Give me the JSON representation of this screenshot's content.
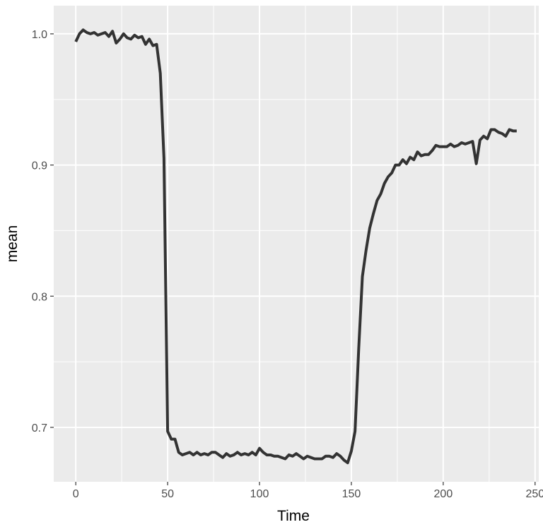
{
  "chart_data": {
    "type": "line",
    "xlabel": "Time",
    "ylabel": "mean",
    "xlim": [
      -12,
      252
    ],
    "ylim": [
      0.6585,
      1.0215
    ],
    "x_ticks": [
      0,
      50,
      100,
      150,
      200,
      250
    ],
    "x_tick_labels": [
      "0",
      "50",
      "100",
      "150",
      "200",
      "250"
    ],
    "y_ticks": [
      0.7,
      0.8,
      0.9,
      1.0
    ],
    "y_tick_labels": [
      "0.7",
      "0.8",
      "0.9",
      "1.0"
    ],
    "grid": true,
    "colors": {
      "panel": "#ebebeb",
      "grid": "#ffffff",
      "line": "#333333"
    },
    "series": [
      {
        "x": [
          0,
          2,
          4,
          6,
          8,
          10,
          12,
          14,
          16,
          18,
          20,
          22,
          24,
          26,
          28,
          30,
          32,
          34,
          36,
          38,
          40,
          42,
          44,
          46,
          48,
          50,
          52,
          54,
          56,
          58,
          60,
          62,
          64,
          66,
          68,
          70,
          72,
          74,
          76,
          78,
          80,
          82,
          84,
          86,
          88,
          90,
          92,
          94,
          96,
          98,
          100,
          102,
          104,
          106,
          108,
          110,
          112,
          114,
          116,
          118,
          120,
          122,
          124,
          126,
          128,
          130,
          132,
          134,
          136,
          138,
          140,
          142,
          144,
          146,
          148,
          150,
          152,
          154,
          156,
          158,
          160,
          162,
          164,
          166,
          168,
          170,
          172,
          174,
          176,
          178,
          180,
          182,
          184,
          186,
          188,
          190,
          192,
          194,
          196,
          198,
          200,
          202,
          204,
          206,
          208,
          210,
          212,
          214,
          216,
          218,
          220,
          222,
          224,
          226,
          228,
          230,
          232,
          234,
          236,
          238,
          240
        ],
        "y": [
          0.994,
          1.0,
          1.003,
          1.001,
          1.0,
          1.001,
          0.999,
          1.0,
          1.001,
          0.998,
          1.002,
          0.993,
          0.996,
          1.0,
          0.997,
          0.996,
          0.999,
          0.997,
          0.998,
          0.992,
          0.996,
          0.991,
          0.992,
          0.97,
          0.905,
          0.697,
          0.691,
          0.691,
          0.681,
          0.679,
          0.68,
          0.681,
          0.679,
          0.681,
          0.679,
          0.68,
          0.679,
          0.681,
          0.681,
          0.679,
          0.677,
          0.68,
          0.678,
          0.679,
          0.681,
          0.679,
          0.68,
          0.679,
          0.681,
          0.679,
          0.684,
          0.681,
          0.679,
          0.679,
          0.678,
          0.678,
          0.677,
          0.676,
          0.679,
          0.678,
          0.68,
          0.678,
          0.676,
          0.678,
          0.677,
          0.676,
          0.676,
          0.676,
          0.678,
          0.678,
          0.677,
          0.68,
          0.678,
          0.675,
          0.673,
          0.682,
          0.697,
          0.76,
          0.815,
          0.835,
          0.852,
          0.863,
          0.873,
          0.878,
          0.886,
          0.891,
          0.894,
          0.9,
          0.9,
          0.904,
          0.901,
          0.906,
          0.904,
          0.91,
          0.907,
          0.908,
          0.908,
          0.911,
          0.915,
          0.914,
          0.914,
          0.914,
          0.916,
          0.914,
          0.915,
          0.917,
          0.916,
          0.917,
          0.918,
          0.901,
          0.919,
          0.922,
          0.92,
          0.927,
          0.927,
          0.925,
          0.924,
          0.922,
          0.927,
          0.926,
          0.926
        ]
      }
    ]
  }
}
